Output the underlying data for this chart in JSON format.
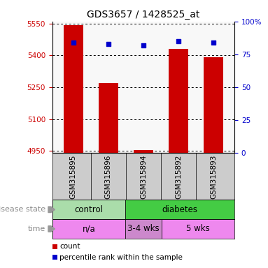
{
  "title": "GDS3657 / 1428525_at",
  "samples": [
    "GSM315895",
    "GSM315896",
    "GSM315894",
    "GSM315892",
    "GSM315893"
  ],
  "bar_values": [
    5542,
    5270,
    4955,
    5430,
    5390
  ],
  "percentile_values": [
    84,
    83,
    82,
    85,
    84
  ],
  "ylim_left": [
    4940,
    5560
  ],
  "ylim_right": [
    0,
    100
  ],
  "yticks_left": [
    4950,
    5100,
    5250,
    5400,
    5550
  ],
  "yticks_right": [
    0,
    25,
    50,
    75,
    100
  ],
  "bar_color": "#cc0000",
  "dot_color": "#0000cc",
  "plot_bg": "#f8f8f8",
  "sample_row_bg": "#cccccc",
  "disease_groups": [
    {
      "label": "control",
      "start": 0,
      "end": 2,
      "color": "#aaddaa"
    },
    {
      "label": "diabetes",
      "start": 2,
      "end": 5,
      "color": "#44cc44"
    }
  ],
  "time_groups": [
    {
      "label": "n/a",
      "start": 0,
      "end": 2,
      "color": "#ee88ee"
    },
    {
      "label": "3-4 wks",
      "start": 2,
      "end": 3,
      "color": "#cc88cc"
    },
    {
      "label": "5 wks",
      "start": 3,
      "end": 5,
      "color": "#ee88ee"
    }
  ],
  "legend_items": [
    {
      "label": "count",
      "color": "#cc0000"
    },
    {
      "label": "percentile rank within the sample",
      "color": "#0000cc"
    }
  ],
  "label_disease": "disease state",
  "label_time": "time",
  "background_color": "#ffffff"
}
